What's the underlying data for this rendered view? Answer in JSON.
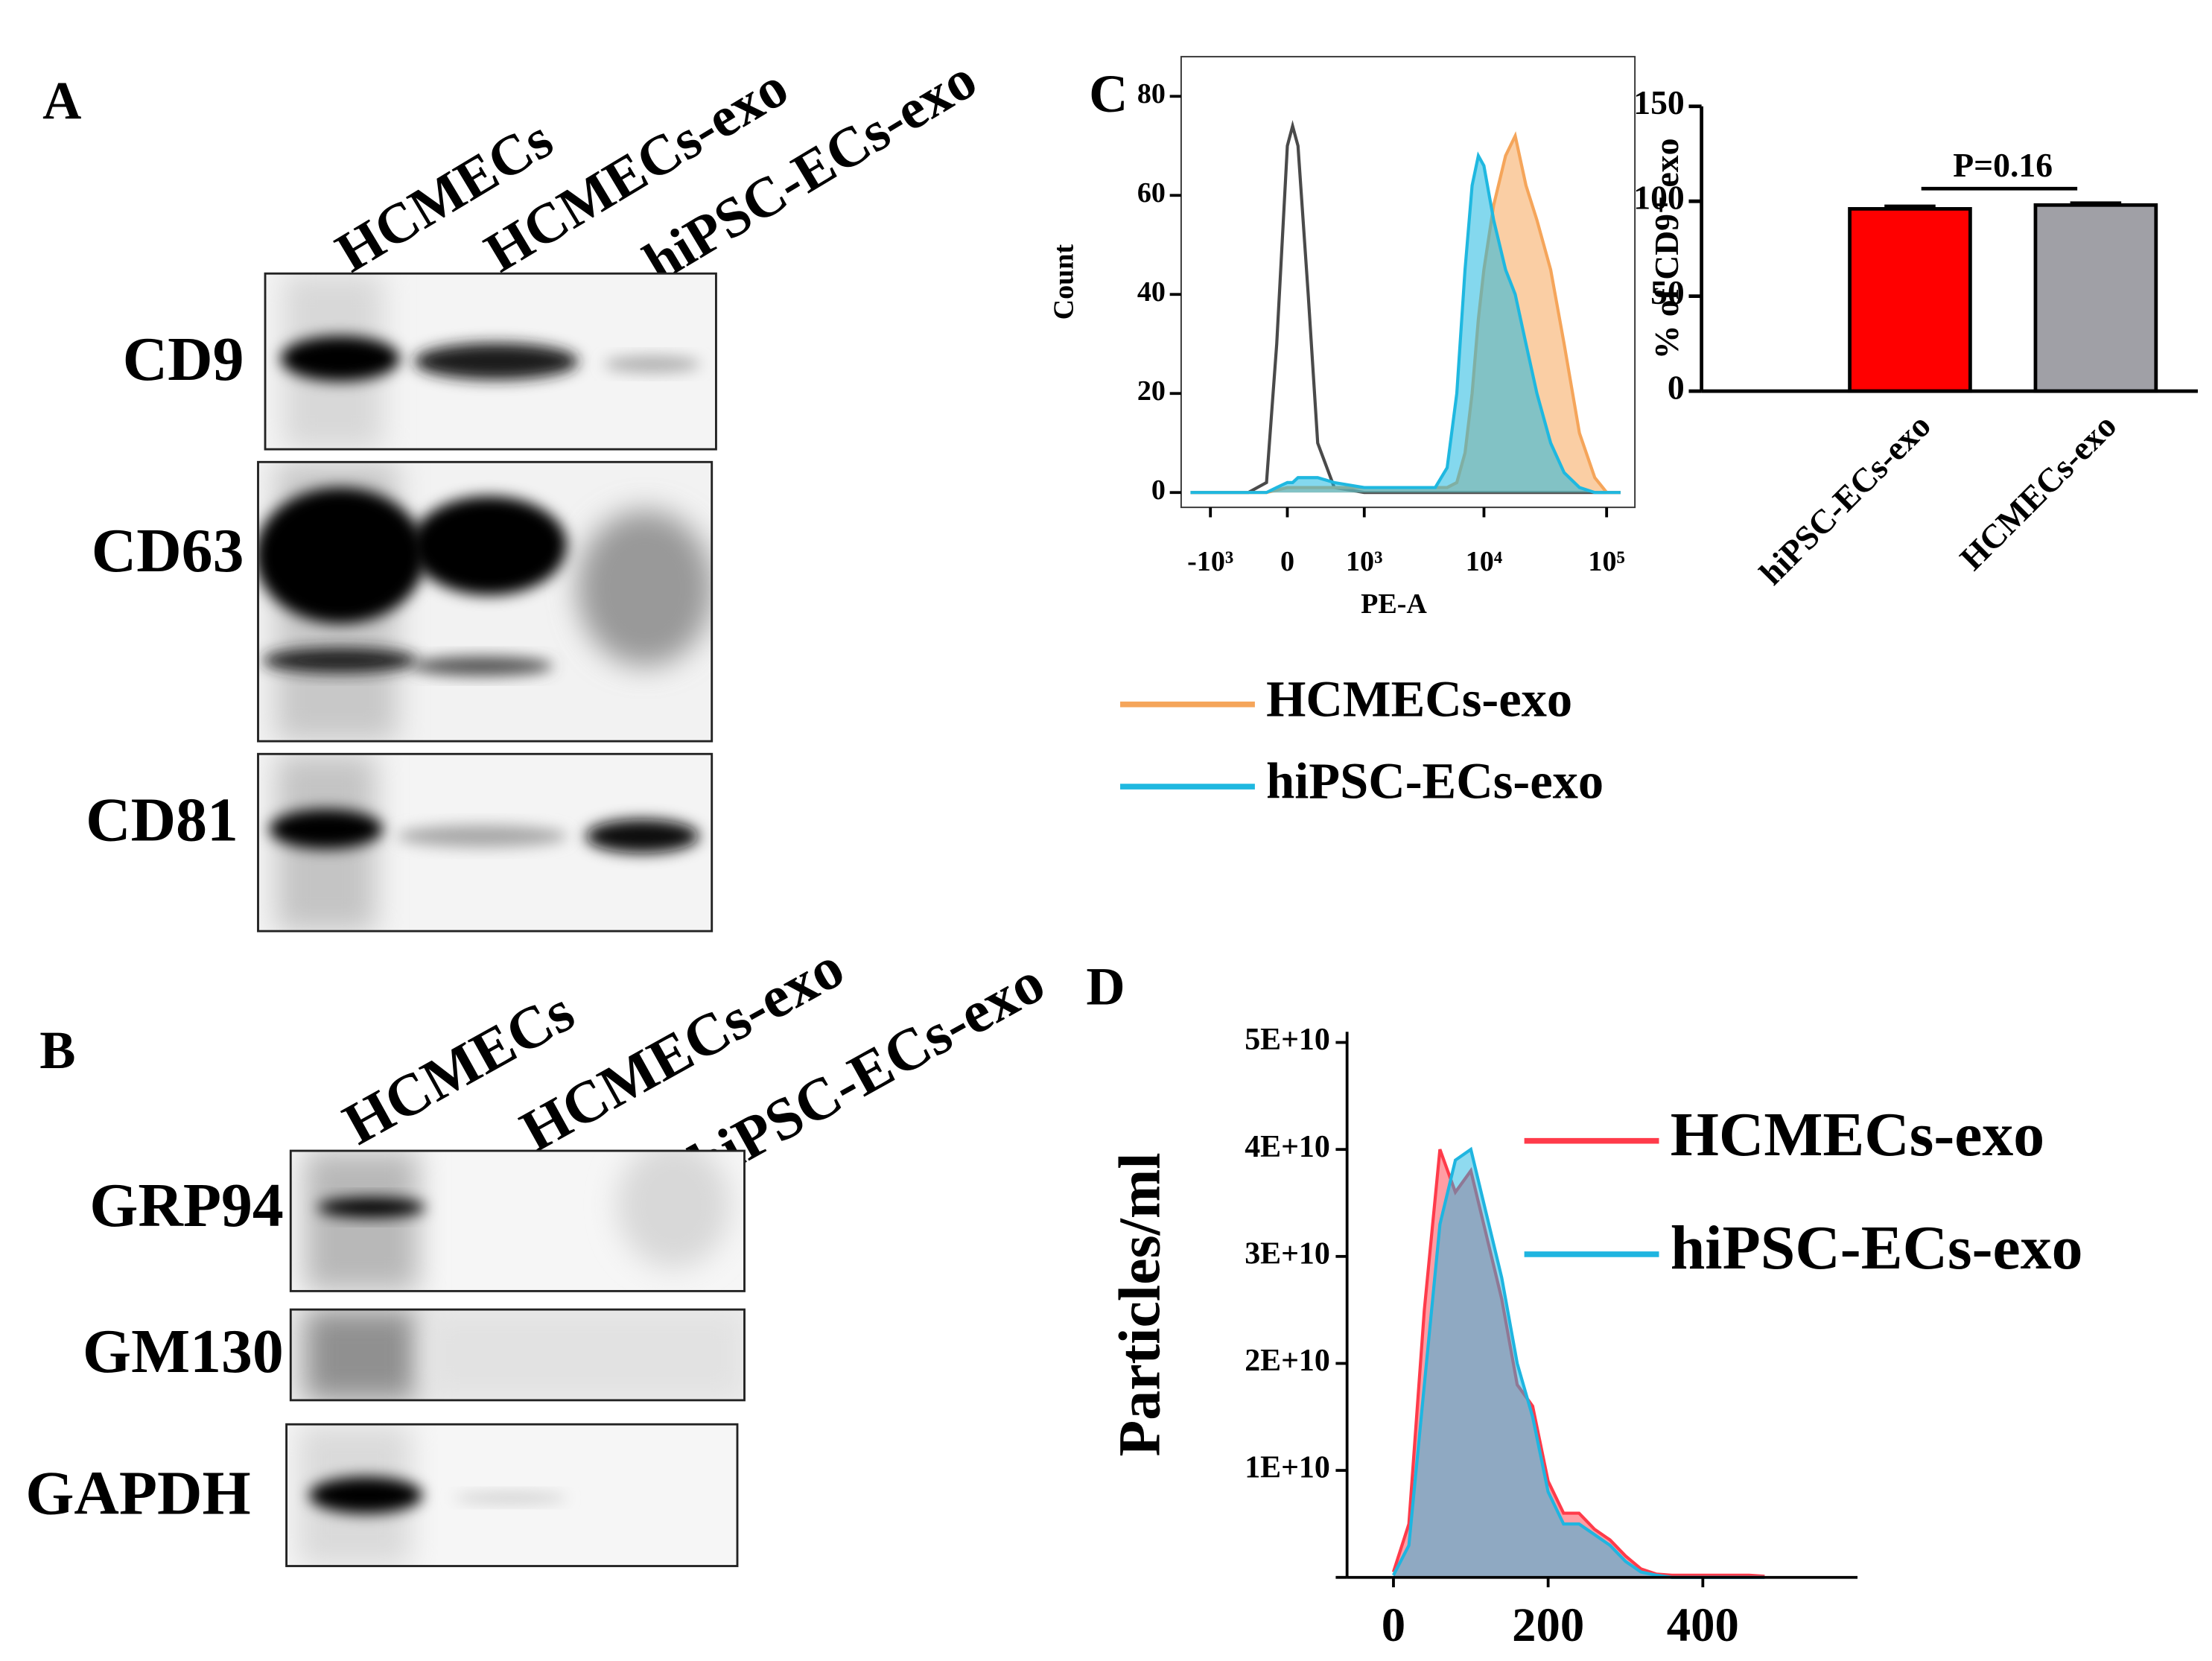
{
  "panel_labels": [
    "A",
    "B",
    "C",
    "D"
  ],
  "blots": [
    {
      "lanes": [
        "HCMECs",
        "HCMECs-exo",
        "hiPSC-ECs-exo"
      ],
      "rows": [
        "CD9",
        "CD63",
        "CD81"
      ]
    },
    {
      "lanes": [
        "HCMECs",
        "HCMECs-exo",
        "hiPSC-ECs-exo"
      ],
      "rows": [
        "GRP94",
        "GM130",
        "GAPDH"
      ]
    }
  ],
  "chart_data": [
    {
      "type": "area",
      "ylabel": "Count",
      "xlabel": "PE-A",
      "xscale": "biexponential",
      "xlim": [
        -1800,
        170000
      ],
      "ylim": [
        -3,
        88
      ],
      "xticks": [
        {
          "value": -1000,
          "label": "-10³"
        },
        0,
        {
          "value": 1000,
          "label": "10³"
        },
        {
          "value": 10000,
          "label": "10⁴"
        },
        {
          "value": 100000,
          "label": "10⁵"
        }
      ],
      "yticks": [
        0,
        20,
        40,
        60,
        80
      ],
      "x": [
        -1500,
        -800,
        -400,
        -200,
        -100,
        0,
        50,
        100,
        200,
        300,
        500,
        1000,
        2000,
        4000,
        5000,
        6000,
        7000,
        8000,
        9000,
        10000,
        12000,
        15000,
        18000,
        22000,
        27000,
        35000,
        45000,
        60000,
        80000,
        100000,
        130000
      ],
      "series": [
        {
          "color": "#4a4a4a",
          "fill": false,
          "values": [
            0,
            0,
            0,
            2,
            30,
            70,
            74,
            70,
            40,
            10,
            1,
            0,
            0,
            0,
            0,
            0,
            0,
            0,
            0,
            0,
            0,
            0,
            0,
            0,
            0,
            0,
            0,
            0,
            0,
            0,
            0
          ]
        },
        {
          "name": "HCMECs-exo",
          "color": "#f5a55a",
          "fill": true,
          "values": [
            0,
            0,
            0,
            0,
            0.5,
            1,
            1,
            1,
            1,
            1,
            1,
            1,
            1,
            1,
            1,
            2,
            8,
            20,
            35,
            45,
            58,
            68,
            72,
            62,
            55,
            45,
            30,
            12,
            3,
            0,
            0
          ]
        },
        {
          "name": "hiPSC-ECs-exo",
          "color": "#1fb8e0",
          "fill": true,
          "values": [
            0,
            0,
            0,
            0,
            1,
            2,
            2,
            3,
            3,
            3,
            2,
            1,
            1,
            1,
            5,
            20,
            45,
            62,
            68,
            66,
            55,
            45,
            40,
            30,
            20,
            10,
            4,
            1,
            0,
            0,
            0
          ]
        }
      ]
    },
    {
      "type": "bar",
      "ylabel": "% of CD9⁺ exo",
      "ylim": [
        0,
        150
      ],
      "yticks": [
        0,
        50,
        100,
        150
      ],
      "categories": [
        "hiPSC-ECs-exo",
        "HCMECs-exo"
      ],
      "values": [
        96,
        98
      ],
      "errors": [
        1.5,
        1.2
      ],
      "colors": [
        "#ff0000",
        "#a0a0a6"
      ],
      "annotation": "P=0.16"
    },
    {
      "type": "area",
      "ylabel": "Particles/ml",
      "xlim": [
        -60,
        600
      ],
      "ylim": [
        0,
        51000000000
      ],
      "xticks": [
        0,
        200,
        400
      ],
      "yticks": [
        {
          "value": 0,
          "label": null
        },
        {
          "value": 10000000000,
          "label": "1E+10"
        },
        {
          "value": 20000000000,
          "label": "2E+10"
        },
        {
          "value": 30000000000,
          "label": "3E+10"
        },
        {
          "value": 40000000000,
          "label": "4E+10"
        },
        {
          "value": 50000000000,
          "label": "5E+10"
        }
      ],
      "x": [
        0,
        20,
        40,
        60,
        80,
        100,
        120,
        140,
        160,
        180,
        200,
        220,
        240,
        260,
        280,
        300,
        320,
        340,
        360,
        380,
        400,
        420,
        440,
        460,
        480
      ],
      "series": [
        {
          "name": "HCMECs-exo",
          "color": "#ff3b4a",
          "fill": true,
          "values": [
            500000000.0,
            5000000000.0,
            25000000000.0,
            40000000000.0,
            36000000000.0,
            38000000000.0,
            32000000000.0,
            26000000000.0,
            18000000000.0,
            16000000000.0,
            9000000000.0,
            6000000000.0,
            6000000000.0,
            4500000000.0,
            3500000000.0,
            2000000000.0,
            800000000.0,
            300000000.0,
            200000000.0,
            200000000.0,
            200000000.0,
            200000000.0,
            200000000.0,
            200000000.0,
            100000000.0
          ]
        },
        {
          "name": "hiPSC-ECs-exo",
          "color": "#1fb5e0",
          "fill": true,
          "values": [
            200000000.0,
            3000000000.0,
            18000000000.0,
            33000000000.0,
            39000000000.0,
            40000000000.0,
            34000000000.0,
            28000000000.0,
            20000000000.0,
            15000000000.0,
            8000000000.0,
            5000000000.0,
            5000000000.0,
            4000000000.0,
            3000000000.0,
            1500000000.0,
            500000000.0,
            200000000.0,
            0,
            0,
            0,
            0,
            0,
            0,
            0
          ]
        }
      ]
    }
  ]
}
